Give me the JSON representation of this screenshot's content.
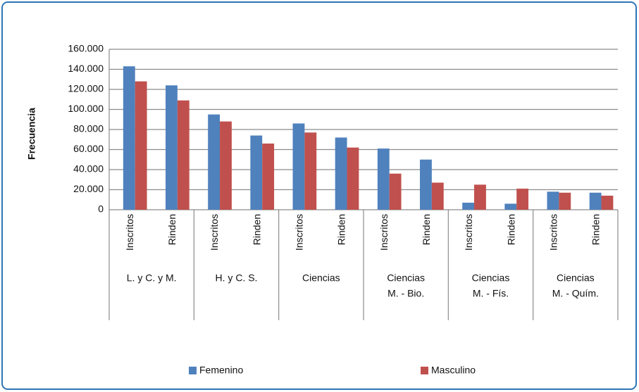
{
  "chart_data": {
    "type": "bar",
    "y_label": "Frecuencia",
    "categories": [
      "Inscritos",
      "Rinden",
      "Inscritos",
      "Rinden",
      "Inscritos",
      "Rinden",
      "Inscritos",
      "Rinden",
      "Inscritos",
      "Rinden",
      "Inscritos",
      "Rinden"
    ],
    "groups": [
      [
        "L. y C. y M."
      ],
      [
        "H. y C. S."
      ],
      [
        "Ciencias"
      ],
      [
        "Ciencias",
        "M. - Bio."
      ],
      [
        "Ciencias",
        "M. - Fís."
      ],
      [
        "Ciencias",
        "M. - Quím."
      ]
    ],
    "series": [
      {
        "name": "Femenino",
        "color": "#4f81bd",
        "values": [
          143000,
          124000,
          95000,
          74000,
          86000,
          72000,
          61000,
          50000,
          7000,
          6000,
          18000,
          17000
        ]
      },
      {
        "name": "Masculino",
        "color": "#c0504d",
        "values": [
          128000,
          109000,
          88000,
          66000,
          77000,
          62000,
          36000,
          27000,
          25000,
          21000,
          17000,
          14000
        ]
      }
    ],
    "ylim": [
      0,
      160000
    ],
    "yticks": [
      0,
      {
        "value": 20000,
        "label": "20.000"
      },
      {
        "value": 40000,
        "label": "40.000"
      },
      {
        "value": 60000,
        "label": "60.000"
      },
      {
        "value": 80000,
        "label": "80.000"
      },
      {
        "value": 100000,
        "label": "100.000"
      },
      {
        "value": 120000,
        "label": "120.000"
      },
      {
        "value": 140000,
        "label": "140.000"
      },
      {
        "value": 160000,
        "label": "160.000"
      }
    ],
    "grid": true,
    "legend": "bottom"
  }
}
